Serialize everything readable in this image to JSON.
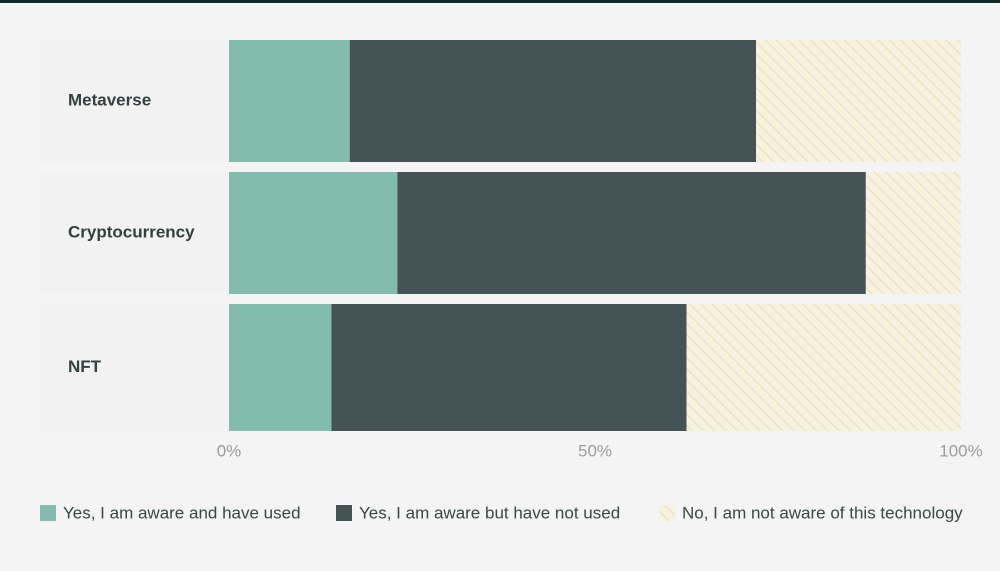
{
  "chart_data": {
    "type": "stacked-bar-horizontal",
    "categories": [
      "Metaverse",
      "Cryptocurrency",
      "NFT"
    ],
    "series": [
      {
        "name": "Yes, I am aware and have used",
        "color": "#83bbad",
        "values": [
          16.5,
          23,
          14
        ]
      },
      {
        "name": "Yes, I am aware but have not used",
        "color": "#445356",
        "values": [
          55.5,
          64,
          48.5
        ]
      },
      {
        "name": "No, I am not aware of this technology",
        "color": "hatch",
        "values": [
          28,
          13,
          37.5
        ]
      }
    ],
    "xlim": [
      0,
      100
    ],
    "xticks": [
      {
        "value": 0,
        "label": "0%"
      },
      {
        "value": 50,
        "label": "50%"
      },
      {
        "value": 100,
        "label": "100%"
      }
    ]
  }
}
